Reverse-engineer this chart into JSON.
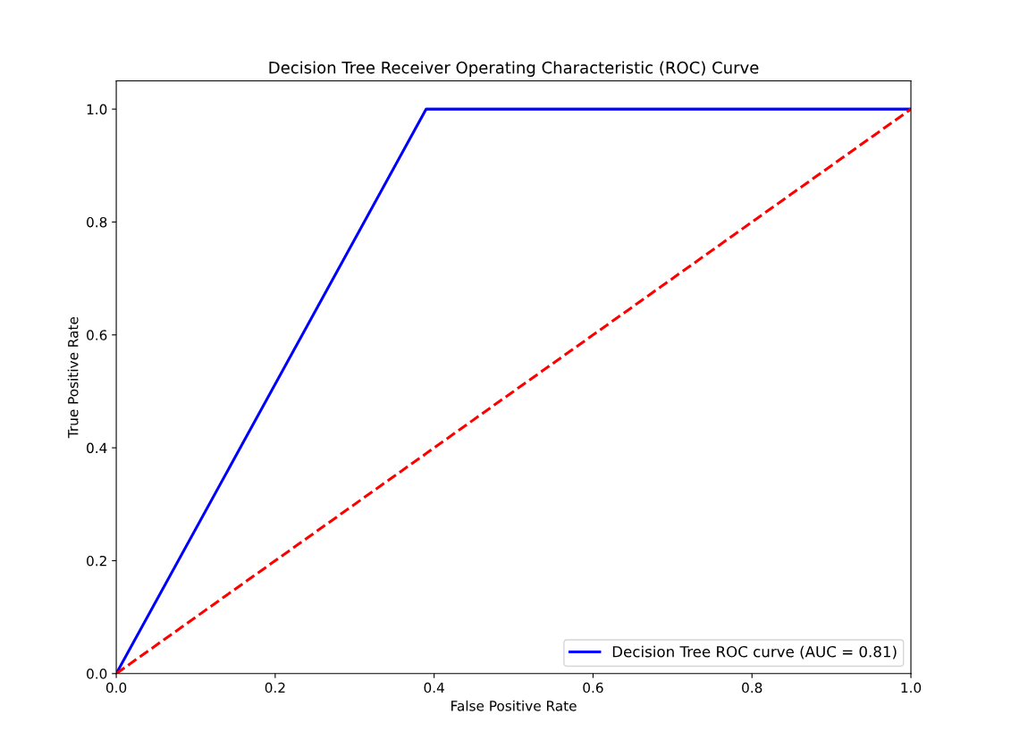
{
  "chart_data": {
    "type": "line",
    "title": "Decision Tree Receiver Operating Characteristic (ROC) Curve",
    "xlabel": "False Positive Rate",
    "ylabel": "True Positive Rate",
    "series": [
      {
        "name": "Decision Tree ROC curve (AUC = 0.81)",
        "color": "#0000ff",
        "x": [
          0,
          0.39,
          1.0
        ],
        "values": [
          0,
          1.0,
          1.0
        ],
        "line_style": "solid"
      },
      {
        "color": "#ff0000",
        "x": [
          0,
          1.0
        ],
        "values": [
          0,
          1.0
        ],
        "line_style": "dashed"
      }
    ],
    "xlim": [
      0.0,
      1.0
    ],
    "ylim": [
      0.0,
      1.05
    ],
    "xticks": [
      {
        "value": 0,
        "label": "0.0"
      },
      0.2,
      0.4,
      0.6,
      0.8,
      {
        "value": 1,
        "label": "1.0"
      }
    ],
    "yticks": [
      {
        "value": 0,
        "label": "0.0"
      },
      0.2,
      0.4,
      0.6,
      0.8,
      {
        "value": 1,
        "label": "1.0"
      }
    ],
    "grid": false,
    "legend": "lower right",
    "marker": "none"
  }
}
